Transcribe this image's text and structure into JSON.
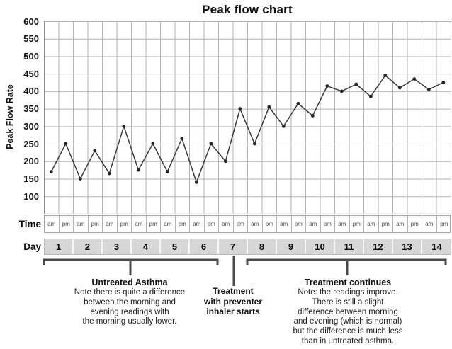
{
  "title": "Peak flow chart",
  "colors": {
    "grid": "#b2b2b2",
    "axis": "#8c8c8c",
    "line": "#3a3a3a",
    "marker": "#262626",
    "bracket": "#4a4a4a",
    "day_cell_bg": "#d7d7d7"
  },
  "y_axis": {
    "label": "Peak Flow Rate",
    "ticks": [
      "600",
      "550",
      "500",
      "450",
      "400",
      "350",
      "300",
      "250",
      "200",
      "150",
      "100"
    ]
  },
  "time_row": {
    "label": "Time",
    "cells": [
      "am",
      "pm",
      "am",
      "pm",
      "am",
      "pm",
      "am",
      "pm",
      "am",
      "pm",
      "am",
      "pm",
      "am",
      "pm",
      "am",
      "pm",
      "am",
      "pm",
      "am",
      "pm",
      "am",
      "pm",
      "am",
      "pm",
      "am",
      "pm",
      "am",
      "pm"
    ]
  },
  "day_row": {
    "label": "Day",
    "days": [
      "1",
      "2",
      "3",
      "4",
      "5",
      "6",
      "7",
      "8",
      "9",
      "10",
      "11",
      "12",
      "13",
      "14"
    ]
  },
  "chart_data": {
    "type": "line",
    "title": "Peak flow chart",
    "xlabel": "Day (am / pm readings)",
    "ylabel": "Peak Flow Rate",
    "ylim": [
      50,
      600
    ],
    "y_tick_step": 50,
    "grid": true,
    "legend": "none",
    "categories": [
      "Day 1 am",
      "Day 1 pm",
      "Day 2 am",
      "Day 2 pm",
      "Day 3 am",
      "Day 3 pm",
      "Day 4 am",
      "Day 4 pm",
      "Day 5 am",
      "Day 5 pm",
      "Day 6 am",
      "Day 6 pm",
      "Day 7 am",
      "Day 7 pm",
      "Day 8 am",
      "Day 8 pm",
      "Day 9 am",
      "Day 9 pm",
      "Day 10 am",
      "Day 10 pm",
      "Day 11 am",
      "Day 11 pm",
      "Day 12 am",
      "Day 12 pm",
      "Day 13 am",
      "Day 13 pm",
      "Day 14 am",
      "Day 14 pm"
    ],
    "series": [
      {
        "name": "Peak flow rate",
        "values": [
          170,
          250,
          150,
          230,
          165,
          300,
          175,
          250,
          170,
          265,
          140,
          250,
          200,
          350,
          250,
          355,
          300,
          365,
          330,
          415,
          400,
          420,
          385,
          445,
          410,
          435,
          405,
          425
        ]
      }
    ]
  },
  "annotations": {
    "untreated": {
      "heading": "Untreated Asthma",
      "body": "Note there is quite a difference\nbetween the morning and\nevening readings with\nthe morning usually lower."
    },
    "treatment_start": {
      "body": "Treatment\nwith preventer\ninhaler starts"
    },
    "treatment_continues": {
      "heading": "Treatment continues",
      "body": "Note: the readings improve.\nThere is still a slight\ndifference between morning\nand evening (which is normal)\nbut the difference is much less\nthan in untreated asthma."
    }
  }
}
